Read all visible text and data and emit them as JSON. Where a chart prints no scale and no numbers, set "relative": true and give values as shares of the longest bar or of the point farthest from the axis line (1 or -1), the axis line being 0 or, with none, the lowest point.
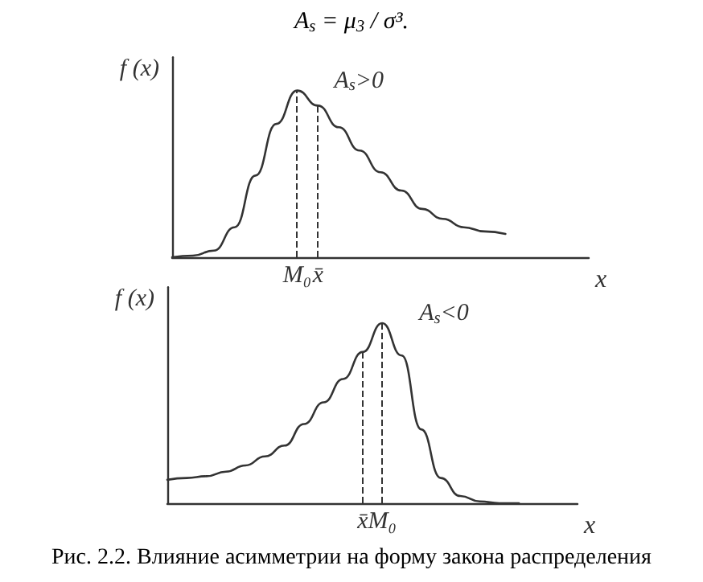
{
  "chart_data": [
    {
      "type": "line",
      "title": "A$_{s}$ = μ$_{3}$ / σ³.",
      "xlabel": "x",
      "ylabel": "f (x)",
      "relative": true,
      "categories": [
        null,
        null,
        null,
        null,
        null,
        null,
        "M₀",
        "x̄",
        null,
        null,
        null,
        null,
        null,
        null,
        null,
        null,
        null,
        null,
        null,
        null,
        null
      ],
      "series": [
        {
          "name": "A$_{s}$>0",
          "color": "#333333",
          "values": [
            0,
            0.01,
            0.04,
            0.18,
            0.49,
            0.8,
            1,
            0.91,
            0.78,
            0.64,
            0.51,
            0.4,
            0.29,
            0.23,
            0.18,
            0.155,
            0.14,
            null,
            null,
            null,
            null
          ]
        }
      ],
      "ref_lines": [
        {
          "axis": "x",
          "value": "M₀",
          "line_style": "dashed"
        },
        {
          "axis": "x",
          "value": "x̄",
          "line_style": "dashed"
        }
      ]
    },
    {
      "type": "line",
      "xlabel": "x",
      "ylabel": "f (x)",
      "relative": true,
      "categories": [
        null,
        null,
        null,
        null,
        null,
        null,
        null,
        null,
        null,
        null,
        "x̄",
        "M₀",
        null,
        null,
        null,
        null,
        null,
        null,
        null,
        null,
        null,
        null
      ],
      "series": [
        {
          "name": "A$_{s}$<0",
          "color": "#333333",
          "values": [
            0.13,
            0.14,
            0.15,
            0.175,
            0.21,
            0.26,
            0.32,
            0.44,
            0.56,
            0.69,
            0.84,
            1,
            0.82,
            0.41,
            0.14,
            0.04,
            0.01,
            0,
            0,
            null,
            null,
            null
          ]
        }
      ],
      "ref_lines": [
        {
          "axis": "x",
          "value": "x̄",
          "line_style": "dashed"
        },
        {
          "axis": "x",
          "value": "M₀",
          "line_style": "dashed"
        }
      ],
      "annotations": [
        "Рис. 2.2. Влияние асимметрии на форму закона распределения"
      ]
    }
  ]
}
